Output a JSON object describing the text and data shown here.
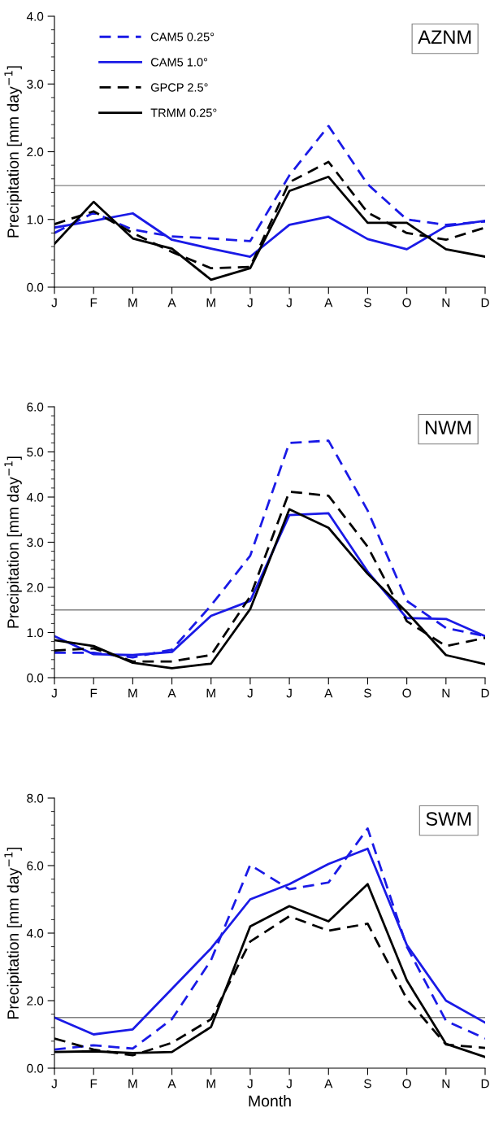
{
  "chart_data": [
    {
      "type": "line",
      "title": "AZNM",
      "ylabel": "Precipitation [mm day$^{−1}$]",
      "categories": [
        "J",
        "F",
        "M",
        "A",
        "M",
        "J",
        "J",
        "A",
        "S",
        "O",
        "N",
        "D"
      ],
      "ylim": [
        0,
        4
      ],
      "yticks": [
        {
          "value": 0,
          "label": "0.0"
        },
        {
          "value": 1,
          "label": "1.0"
        },
        {
          "value": 2,
          "label": "2.0"
        },
        {
          "value": 3,
          "label": "3.0"
        },
        {
          "value": 4,
          "label": "4.0"
        }
      ],
      "grid": false,
      "legend": "top left",
      "marker": "none",
      "ref_lines": [
        {
          "axis": "y",
          "value": 1.5,
          "color": "#808080"
        }
      ],
      "series": [
        {
          "name": "CAM5 0.25°",
          "color": "#1a1ae6",
          "line_style": "dashed",
          "values": [
            0.8,
            1.1,
            0.85,
            0.75,
            0.72,
            0.68,
            1.65,
            2.38,
            1.52,
            1.0,
            0.92,
            0.97
          ]
        },
        {
          "name": "CAM5 1.0°",
          "color": "#1a1ae6",
          "line_style": "solid",
          "values": [
            0.88,
            0.98,
            1.09,
            0.7,
            0.57,
            0.45,
            0.92,
            1.04,
            0.71,
            0.56,
            0.9,
            0.98
          ]
        },
        {
          "name": "GPCP 2.5°",
          "color": "#000000",
          "line_style": "dashed",
          "values": [
            0.93,
            1.12,
            0.8,
            0.52,
            0.28,
            0.3,
            1.55,
            1.85,
            1.1,
            0.8,
            0.7,
            0.88
          ]
        },
        {
          "name": "TRMM 0.25°",
          "color": "#000000",
          "line_style": "solid",
          "values": [
            0.64,
            1.26,
            0.72,
            0.57,
            0.11,
            0.28,
            1.42,
            1.63,
            0.95,
            0.95,
            0.56,
            0.45
          ]
        }
      ]
    },
    {
      "type": "line",
      "title": "NWM",
      "ylabel": "Precipitation [mm day$^{−1}$]",
      "categories": [
        "J",
        "F",
        "M",
        "A",
        "M",
        "J",
        "J",
        "A",
        "S",
        "O",
        "N",
        "D"
      ],
      "ylim": [
        0,
        6
      ],
      "yticks": [
        {
          "value": 0,
          "label": "0.0"
        },
        {
          "value": 1,
          "label": "1.0"
        },
        {
          "value": 2,
          "label": "2.0"
        },
        {
          "value": 3,
          "label": "3.0"
        },
        {
          "value": 4,
          "label": "4.0"
        },
        {
          "value": 5,
          "label": "5.0"
        },
        {
          "value": 6,
          "label": "6.0"
        }
      ],
      "grid": false,
      "marker": "none",
      "ref_lines": [
        {
          "axis": "y",
          "value": 1.5,
          "color": "#808080"
        }
      ],
      "series": [
        {
          "color": "#1a1ae6",
          "line_style": "dashed",
          "values": [
            0.55,
            0.55,
            0.45,
            0.62,
            1.6,
            2.7,
            5.2,
            5.25,
            3.7,
            1.7,
            1.1,
            0.92
          ]
        },
        {
          "color": "#1a1ae6",
          "line_style": "solid",
          "values": [
            0.92,
            0.52,
            0.5,
            0.57,
            1.37,
            1.7,
            3.6,
            3.64,
            2.35,
            1.32,
            1.3,
            0.92
          ]
        },
        {
          "color": "#000000",
          "line_style": "dashed",
          "values": [
            0.6,
            0.65,
            0.36,
            0.36,
            0.5,
            1.8,
            4.12,
            4.03,
            2.9,
            1.25,
            0.7,
            0.88
          ]
        },
        {
          "color": "#000000",
          "line_style": "solid",
          "values": [
            0.83,
            0.7,
            0.33,
            0.21,
            0.31,
            1.52,
            3.73,
            3.32,
            2.3,
            1.45,
            0.5,
            0.3
          ]
        }
      ]
    },
    {
      "type": "line",
      "title": "SWM",
      "xlabel": "Month",
      "ylabel": "Precipitation [mm day$^{−1}$]",
      "categories": [
        "J",
        "F",
        "M",
        "A",
        "M",
        "J",
        "J",
        "A",
        "S",
        "O",
        "N",
        "D"
      ],
      "ylim": [
        0,
        8
      ],
      "yticks": [
        {
          "value": 0,
          "label": "0.0"
        },
        {
          "value": 2,
          "label": "2.0"
        },
        {
          "value": 4,
          "label": "4.0"
        },
        {
          "value": 6,
          "label": "6.0"
        },
        {
          "value": 8,
          "label": "8.0"
        }
      ],
      "grid": false,
      "marker": "none",
      "ref_lines": [
        {
          "axis": "y",
          "value": 1.5,
          "color": "#808080"
        }
      ],
      "series": [
        {
          "color": "#1a1ae6",
          "line_style": "dashed",
          "values": [
            0.55,
            0.68,
            0.58,
            1.45,
            3.2,
            6.02,
            5.3,
            5.5,
            7.1,
            3.6,
            1.4,
            0.88
          ]
        },
        {
          "color": "#1a1ae6",
          "line_style": "solid",
          "values": [
            1.5,
            1.0,
            1.15,
            2.35,
            3.55,
            5.0,
            5.45,
            6.05,
            6.5,
            3.65,
            2.0,
            1.35
          ]
        },
        {
          "color": "#000000",
          "line_style": "dashed",
          "values": [
            0.88,
            0.55,
            0.38,
            0.75,
            1.45,
            3.75,
            4.5,
            4.07,
            4.28,
            2.05,
            0.7,
            0.6
          ]
        },
        {
          "color": "#000000",
          "line_style": "solid",
          "values": [
            0.48,
            0.5,
            0.45,
            0.48,
            1.22,
            4.2,
            4.8,
            4.35,
            5.45,
            2.6,
            0.72,
            0.33
          ]
        }
      ]
    }
  ]
}
